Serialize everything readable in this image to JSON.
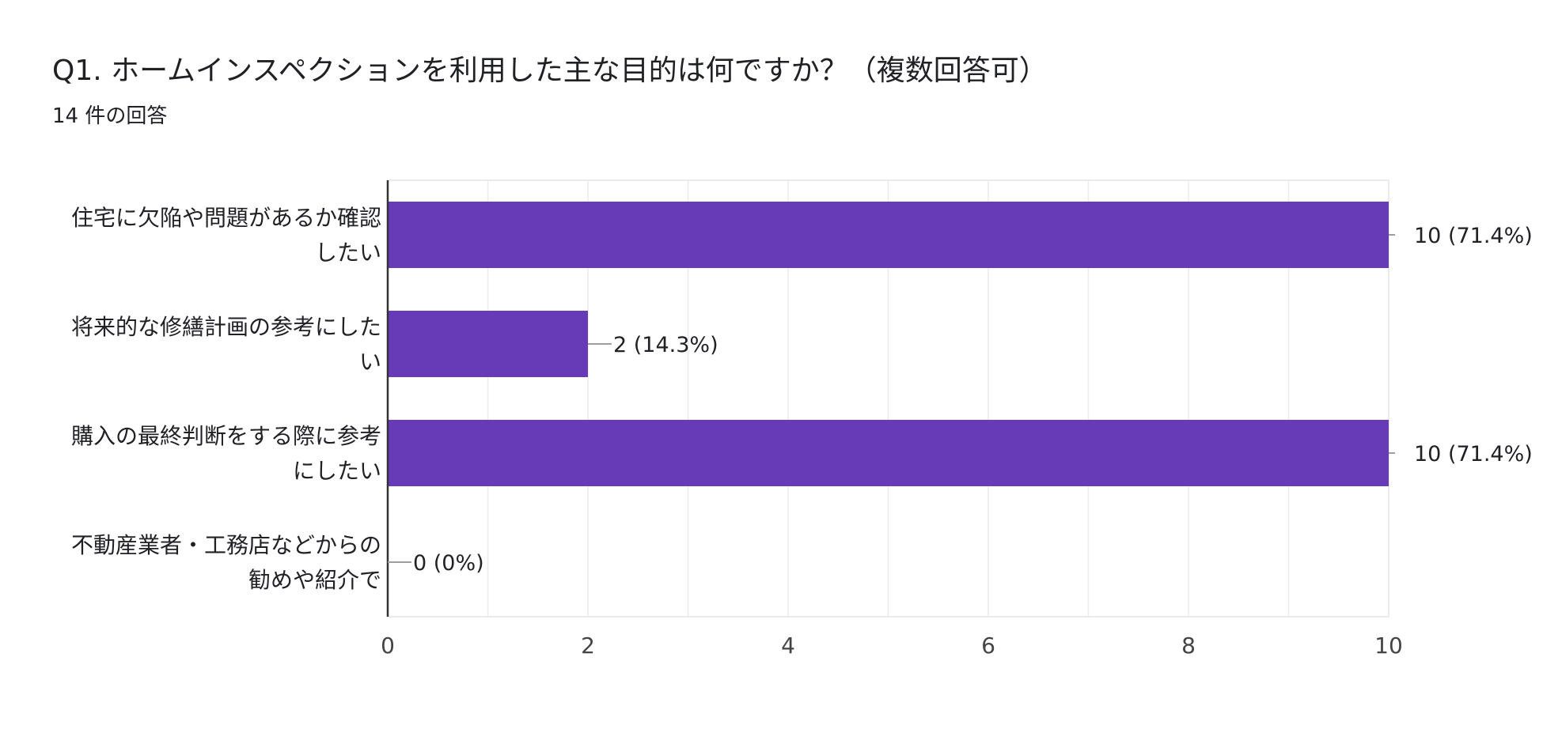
{
  "title": "Q1. ホームインスペクションを利用した主な目的は何ですか？（複数回答可）",
  "response_count": "14 件の回答",
  "colors": {
    "bar": "#673ab7",
    "grid": "#ebebeb",
    "axis": "#333333",
    "leader": "#9e9e9e",
    "text": "#202124",
    "tick_text": "#444444"
  },
  "chart_data": {
    "type": "bar",
    "orientation": "horizontal",
    "categories": [
      [
        "住宅に欠陥や問題があるか確認",
        "したい"
      ],
      [
        "将来的な修繕計画の参考にした",
        "い"
      ],
      [
        "購入の最終判断をする際に参考",
        "にしたい"
      ],
      [
        "不動産業者・工務店などからの",
        "勧めや紹介で"
      ]
    ],
    "values": [
      10,
      2,
      10,
      0
    ],
    "data_labels": [
      "10 (71.4%)",
      "2 (14.3%)",
      "10 (71.4%)",
      "0 (0%)"
    ],
    "xlim": [
      0,
      10
    ],
    "x_ticks": [
      "0",
      "2",
      "4",
      "6",
      "8",
      "10"
    ],
    "grid": true,
    "legend": "none"
  }
}
